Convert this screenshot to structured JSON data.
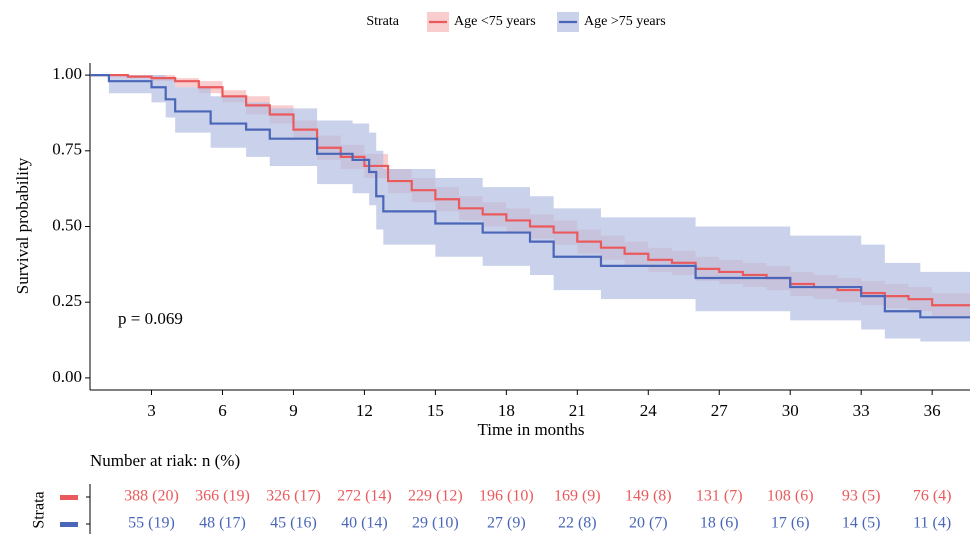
{
  "chart_data": {
    "type": "km",
    "y_label": "Survival probability",
    "x_label": "Time in months",
    "legend_title": "Strata",
    "annotation": "p = 0.069",
    "xlim": [
      0.4,
      37.6
    ],
    "ylim": [
      -0.04,
      1.04
    ],
    "xticks": [
      3,
      6,
      9,
      12,
      15,
      18,
      21,
      24,
      27,
      30,
      33,
      36
    ],
    "yticks": [
      {
        "value": 0,
        "label": "0.00"
      },
      {
        "value": 0.25,
        "label": "0.25"
      },
      {
        "value": 0.5,
        "label": "0.50"
      },
      {
        "value": 0.75,
        "label": "0.75"
      },
      {
        "value": 1,
        "label": "1.00"
      }
    ],
    "series": [
      {
        "name": "Age <75 years",
        "color": "#ea5a5c",
        "band_color": "#f7b8b8",
        "x": [
          0.4,
          2,
          3,
          4,
          5,
          6,
          7,
          8,
          9,
          10,
          11,
          12,
          13,
          14,
          15,
          16,
          17,
          18,
          19,
          20,
          21,
          22,
          23,
          24,
          25,
          26,
          27,
          28,
          29,
          30,
          31,
          32,
          33,
          34,
          35,
          36,
          37.6
        ],
        "values": [
          1,
          0.995,
          0.99,
          0.98,
          0.96,
          0.93,
          0.9,
          0.87,
          0.82,
          0.76,
          0.73,
          0.7,
          0.65,
          0.62,
          0.59,
          0.56,
          0.54,
          0.52,
          0.5,
          0.48,
          0.45,
          0.43,
          0.41,
          0.39,
          0.38,
          0.36,
          0.35,
          0.34,
          0.33,
          0.31,
          0.3,
          0.29,
          0.28,
          0.27,
          0.26,
          0.24,
          0.24
        ],
        "lower": [
          1,
          0.99,
          0.98,
          0.96,
          0.94,
          0.91,
          0.87,
          0.84,
          0.79,
          0.72,
          0.69,
          0.66,
          0.61,
          0.58,
          0.55,
          0.52,
          0.5,
          0.48,
          0.46,
          0.44,
          0.41,
          0.39,
          0.37,
          0.35,
          0.34,
          0.32,
          0.31,
          0.3,
          0.29,
          0.27,
          0.26,
          0.25,
          0.24,
          0.23,
          0.22,
          0.2,
          0.2
        ],
        "upper": [
          1,
          1,
          1,
          0.99,
          0.98,
          0.95,
          0.93,
          0.9,
          0.85,
          0.8,
          0.77,
          0.74,
          0.69,
          0.66,
          0.63,
          0.6,
          0.58,
          0.56,
          0.54,
          0.52,
          0.49,
          0.47,
          0.45,
          0.43,
          0.42,
          0.4,
          0.39,
          0.38,
          0.37,
          0.35,
          0.34,
          0.33,
          0.32,
          0.31,
          0.3,
          0.28,
          0.28
        ]
      },
      {
        "name": "Age >75 years",
        "color": "#4a66b8",
        "band_color": "#b3bfe3",
        "x": [
          0.4,
          1.2,
          3,
          3.6,
          4,
          5.5,
          7,
          8,
          10,
          11.5,
          12.2,
          12.5,
          12.8,
          15,
          17,
          19,
          20,
          22,
          26,
          30,
          33,
          34,
          35.5,
          37.6
        ],
        "values": [
          1,
          0.98,
          0.96,
          0.92,
          0.88,
          0.84,
          0.82,
          0.79,
          0.74,
          0.72,
          0.68,
          0.6,
          0.55,
          0.51,
          0.48,
          0.45,
          0.4,
          0.37,
          0.33,
          0.3,
          0.27,
          0.22,
          0.2,
          0.2
        ],
        "lower": [
          1,
          0.94,
          0.91,
          0.86,
          0.81,
          0.76,
          0.73,
          0.7,
          0.64,
          0.61,
          0.57,
          0.49,
          0.44,
          0.4,
          0.37,
          0.34,
          0.29,
          0.26,
          0.22,
          0.19,
          0.16,
          0.13,
          0.12,
          0.12
        ],
        "upper": [
          1,
          1,
          1,
          0.99,
          0.96,
          0.93,
          0.91,
          0.89,
          0.85,
          0.84,
          0.81,
          0.75,
          0.69,
          0.66,
          0.63,
          0.6,
          0.56,
          0.53,
          0.5,
          0.47,
          0.44,
          0.38,
          0.35,
          0.35
        ]
      }
    ],
    "risk_table": {
      "title": "Number at riak: n (%)",
      "y_label": "Strata",
      "rows": [
        [
          "388 (20)",
          "366 (19)",
          "326 (17)",
          "272 (14)",
          "229 (12)",
          "196 (10)",
          "169 (9)",
          "149 (8)",
          "131 (7)",
          "108 (6)",
          "93 (5)",
          "76 (4)"
        ],
        [
          "55 (19)",
          "48 (17)",
          "45 (16)",
          "40 (14)",
          "29 (10)",
          "27 (9)",
          "22 (8)",
          "20 (7)",
          "18 (6)",
          "17 (6)",
          "14 (5)",
          "11 (4)"
        ]
      ]
    }
  }
}
